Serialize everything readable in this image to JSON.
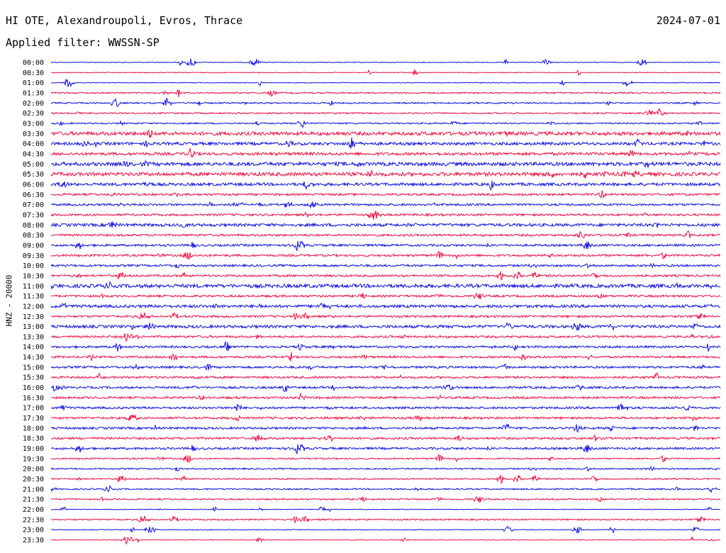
{
  "header": {
    "station": "HI OTE, Alexandroupoli, Evros, Thrace",
    "date": "2024-07-01",
    "filter": "Applied filter: WWSSN-SP"
  },
  "chart_data": {
    "type": "line",
    "title": "HI OTE, Alexandroupoli, Evros, Thrace",
    "ylabel": "HNZ - 20000",
    "colors": [
      "#1010e0",
      "#ee1144"
    ],
    "tick_labels": [
      "00:00",
      "00:30",
      "01:00",
      "01:30",
      "02:00",
      "02:30",
      "03:00",
      "03:30",
      "04:00",
      "04:30",
      "05:00",
      "05:30",
      "06:00",
      "06:30",
      "07:00",
      "07:30",
      "08:00",
      "08:30",
      "09:00",
      "09:30",
      "10:00",
      "10:30",
      "11:00",
      "11:30",
      "12:00",
      "12:30",
      "13:00",
      "13:30",
      "14:00",
      "14:30",
      "15:00",
      "15:30",
      "16:00",
      "16:30",
      "17:00",
      "17:30",
      "18:00",
      "18:30",
      "19:00",
      "19:30",
      "20:00",
      "20:30",
      "21:00",
      "21:30",
      "22:00",
      "22:30",
      "23:00",
      "23:30"
    ],
    "noise_level": [
      1,
      1,
      1,
      2,
      2,
      2,
      2,
      5,
      4,
      4,
      5,
      5,
      4,
      3,
      3,
      3,
      4,
      3,
      3,
      3,
      3,
      3,
      5,
      3,
      4,
      3,
      4,
      3,
      3,
      3,
      3,
      3,
      3,
      3,
      3,
      3,
      3,
      3,
      3,
      2,
      2,
      2,
      2,
      2,
      1,
      2,
      1,
      1
    ]
  }
}
